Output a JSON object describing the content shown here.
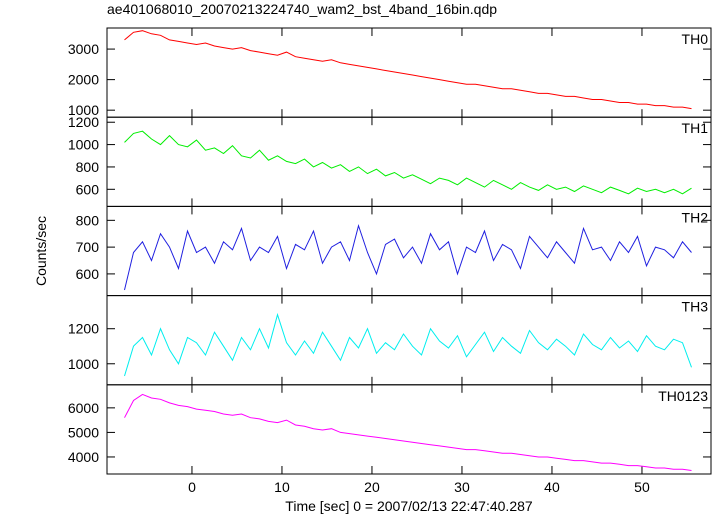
{
  "chart_data": [
    {
      "type": "line",
      "title": "ae401068010_20070213224740_wam2_bst_4band_16bin.qdp",
      "x": [
        -7.5,
        -6.5,
        -5.5,
        -4.5,
        -3.5,
        -2.5,
        -1.5,
        -0.5,
        0.5,
        1.5,
        2.5,
        3.5,
        4.5,
        5.5,
        6.5,
        7.5,
        8.5,
        9.5,
        10.5,
        11.5,
        12.5,
        13.5,
        14.5,
        15.5,
        16.5,
        17.5,
        18.5,
        19.5,
        20.5,
        21.5,
        22.5,
        23.5,
        24.5,
        25.5,
        26.5,
        27.5,
        28.5,
        29.5,
        30.5,
        31.5,
        32.5,
        33.5,
        34.5,
        35.5,
        36.5,
        37.5,
        38.5,
        39.5,
        40.5,
        41.5,
        42.5,
        43.5,
        44.5,
        45.5,
        46.5,
        47.5,
        48.5,
        49.5,
        50.5,
        51.5,
        52.5,
        53.5,
        54.5,
        55.5
      ],
      "xlim": [
        -9.44,
        57.67
      ],
      "ylim": [
        770,
        3690
      ],
      "yticks": [
        1000,
        2000,
        3000
      ],
      "series": [
        {
          "name": "TH0",
          "color": "#ff0000",
          "values": [
            3300,
            3550,
            3600,
            3500,
            3450,
            3300,
            3250,
            3200,
            3150,
            3200,
            3100,
            3050,
            3000,
            3050,
            2950,
            2900,
            2850,
            2800,
            2900,
            2750,
            2700,
            2650,
            2600,
            2650,
            2550,
            2500,
            2450,
            2400,
            2350,
            2300,
            2250,
            2200,
            2150,
            2100,
            2050,
            2000,
            1950,
            1900,
            1850,
            1850,
            1800,
            1750,
            1700,
            1700,
            1650,
            1600,
            1550,
            1550,
            1500,
            1450,
            1450,
            1400,
            1350,
            1350,
            1300,
            1250,
            1250,
            1200,
            1200,
            1150,
            1150,
            1100,
            1100,
            1050
          ]
        }
      ]
    },
    {
      "type": "line",
      "x": [
        -7.5,
        -6.5,
        -5.5,
        -4.5,
        -3.5,
        -2.5,
        -1.5,
        -0.5,
        0.5,
        1.5,
        2.5,
        3.5,
        4.5,
        5.5,
        6.5,
        7.5,
        8.5,
        9.5,
        10.5,
        11.5,
        12.5,
        13.5,
        14.5,
        15.5,
        16.5,
        17.5,
        18.5,
        19.5,
        20.5,
        21.5,
        22.5,
        23.5,
        24.5,
        25.5,
        26.5,
        27.5,
        28.5,
        29.5,
        30.5,
        31.5,
        32.5,
        33.5,
        34.5,
        35.5,
        36.5,
        37.5,
        38.5,
        39.5,
        40.5,
        41.5,
        42.5,
        43.5,
        44.5,
        45.5,
        46.5,
        47.5,
        48.5,
        49.5,
        50.5,
        51.5,
        52.5,
        53.5,
        54.5,
        55.5
      ],
      "xlim": [
        -9.44,
        57.67
      ],
      "ylim": [
        447,
        1245
      ],
      "yticks": [
        600,
        800,
        1000,
        1200
      ],
      "series": [
        {
          "name": "TH1",
          "color": "#00ee00",
          "values": [
            1020,
            1100,
            1120,
            1050,
            1000,
            1080,
            1000,
            980,
            1040,
            950,
            970,
            920,
            990,
            900,
            880,
            950,
            860,
            900,
            850,
            830,
            870,
            800,
            840,
            790,
            820,
            760,
            800,
            740,
            780,
            720,
            750,
            700,
            730,
            690,
            650,
            700,
            680,
            640,
            700,
            660,
            620,
            680,
            640,
            600,
            660,
            620,
            590,
            640,
            600,
            620,
            580,
            630,
            600,
            570,
            620,
            590,
            560,
            610,
            580,
            600,
            570,
            600,
            560,
            610
          ]
        }
      ]
    },
    {
      "type": "line",
      "ylabel": "Counts/sec",
      "x": [
        -7.5,
        -6.5,
        -5.5,
        -4.5,
        -3.5,
        -2.5,
        -1.5,
        -0.5,
        0.5,
        1.5,
        2.5,
        3.5,
        4.5,
        5.5,
        6.5,
        7.5,
        8.5,
        9.5,
        10.5,
        11.5,
        12.5,
        13.5,
        14.5,
        15.5,
        16.5,
        17.5,
        18.5,
        19.5,
        20.5,
        21.5,
        22.5,
        23.5,
        24.5,
        25.5,
        26.5,
        27.5,
        28.5,
        29.5,
        30.5,
        31.5,
        32.5,
        33.5,
        34.5,
        35.5,
        36.5,
        37.5,
        38.5,
        39.5,
        40.5,
        41.5,
        42.5,
        43.5,
        44.5,
        45.5,
        46.5,
        47.5,
        48.5,
        49.5,
        50.5,
        51.5,
        52.5,
        53.5,
        54.5,
        55.5
      ],
      "xlim": [
        -9.44,
        57.67
      ],
      "ylim": [
        519,
        852
      ],
      "yticks": [
        600,
        700,
        800
      ],
      "series": [
        {
          "name": "TH2",
          "color": "#2020e0",
          "values": [
            540,
            680,
            720,
            650,
            750,
            700,
            620,
            760,
            680,
            700,
            640,
            720,
            690,
            770,
            650,
            700,
            680,
            740,
            620,
            710,
            690,
            760,
            640,
            700,
            720,
            650,
            780,
            680,
            600,
            710,
            730,
            660,
            700,
            640,
            750,
            690,
            720,
            600,
            700,
            680,
            760,
            650,
            710,
            690,
            620,
            740,
            700,
            660,
            720,
            680,
            640,
            770,
            690,
            700,
            650,
            720,
            680,
            740,
            630,
            700,
            690,
            660,
            720,
            680
          ]
        }
      ]
    },
    {
      "type": "line",
      "x": [
        -7.5,
        -6.5,
        -5.5,
        -4.5,
        -3.5,
        -2.5,
        -1.5,
        -0.5,
        0.5,
        1.5,
        2.5,
        3.5,
        4.5,
        5.5,
        6.5,
        7.5,
        8.5,
        9.5,
        10.5,
        11.5,
        12.5,
        13.5,
        14.5,
        15.5,
        16.5,
        17.5,
        18.5,
        19.5,
        20.5,
        21.5,
        22.5,
        23.5,
        24.5,
        25.5,
        26.5,
        27.5,
        28.5,
        29.5,
        30.5,
        31.5,
        32.5,
        33.5,
        34.5,
        35.5,
        36.5,
        37.5,
        38.5,
        39.5,
        40.5,
        41.5,
        42.5,
        43.5,
        44.5,
        45.5,
        46.5,
        47.5,
        48.5,
        49.5,
        50.5,
        51.5,
        52.5,
        53.5,
        54.5,
        55.5
      ],
      "xlim": [
        -9.44,
        57.67
      ],
      "ylim": [
        880,
        1389
      ],
      "yticks": [
        1000,
        1200
      ],
      "series": [
        {
          "name": "TH3",
          "color": "#00eeee",
          "values": [
            930,
            1100,
            1150,
            1050,
            1200,
            1080,
            1000,
            1150,
            1120,
            1050,
            1180,
            1100,
            1020,
            1150,
            1080,
            1200,
            1090,
            1280,
            1120,
            1050,
            1130,
            1060,
            1180,
            1100,
            1020,
            1150,
            1090,
            1200,
            1060,
            1120,
            1080,
            1170,
            1100,
            1050,
            1200,
            1130,
            1090,
            1160,
            1040,
            1110,
            1180,
            1070,
            1150,
            1100,
            1060,
            1190,
            1120,
            1080,
            1140,
            1100,
            1050,
            1170,
            1110,
            1080,
            1150,
            1090,
            1130,
            1070,
            1160,
            1100,
            1080,
            1140,
            1120,
            980
          ]
        }
      ]
    },
    {
      "type": "line",
      "xlabel": "Time [sec] 0 = 2007/02/13 22:47:40.287",
      "x": [
        -7.5,
        -6.5,
        -5.5,
        -4.5,
        -3.5,
        -2.5,
        -1.5,
        -0.5,
        0.5,
        1.5,
        2.5,
        3.5,
        4.5,
        5.5,
        6.5,
        7.5,
        8.5,
        9.5,
        10.5,
        11.5,
        12.5,
        13.5,
        14.5,
        15.5,
        16.5,
        17.5,
        18.5,
        19.5,
        20.5,
        21.5,
        22.5,
        23.5,
        24.5,
        25.5,
        26.5,
        27.5,
        28.5,
        29.5,
        30.5,
        31.5,
        32.5,
        33.5,
        34.5,
        35.5,
        36.5,
        37.5,
        38.5,
        39.5,
        40.5,
        41.5,
        42.5,
        43.5,
        44.5,
        45.5,
        46.5,
        47.5,
        48.5,
        49.5,
        50.5,
        51.5,
        52.5,
        53.5,
        54.5,
        55.5
      ],
      "xlim": [
        -9.44,
        57.67
      ],
      "xticks": [
        0,
        10,
        20,
        30,
        40,
        50
      ],
      "ylim": [
        3306,
        6939
      ],
      "yticks": [
        4000,
        5000,
        6000
      ],
      "series": [
        {
          "name": "TH0123",
          "color": "#ff00ff",
          "values": [
            5600,
            6300,
            6550,
            6400,
            6350,
            6200,
            6100,
            6050,
            5950,
            5900,
            5850,
            5750,
            5700,
            5750,
            5600,
            5550,
            5450,
            5400,
            5500,
            5300,
            5250,
            5150,
            5100,
            5150,
            5000,
            4950,
            4900,
            4850,
            4800,
            4750,
            4700,
            4650,
            4600,
            4550,
            4500,
            4450,
            4400,
            4350,
            4300,
            4300,
            4250,
            4200,
            4150,
            4150,
            4100,
            4050,
            4000,
            4000,
            3950,
            3900,
            3850,
            3850,
            3800,
            3750,
            3750,
            3700,
            3650,
            3650,
            3600,
            3550,
            3550,
            3500,
            3500,
            3450
          ]
        }
      ]
    }
  ]
}
